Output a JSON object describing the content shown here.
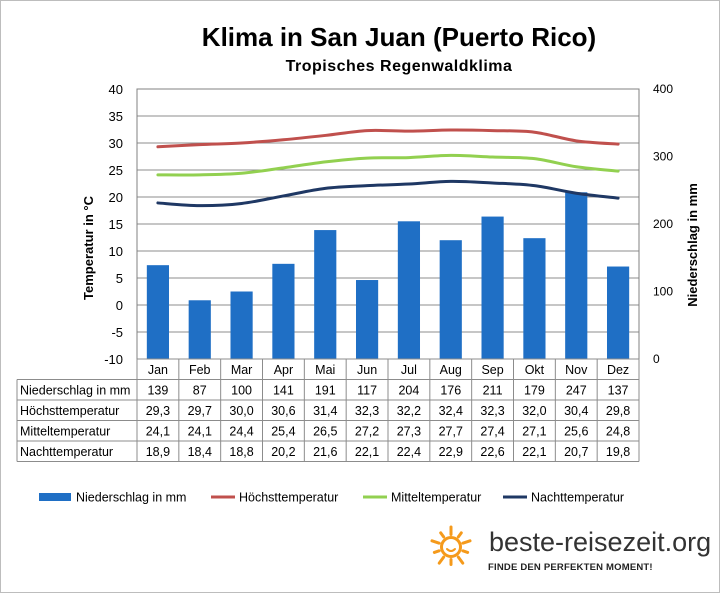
{
  "chart_data": {
    "type": "bar",
    "title": "Klima in San Juan (Puerto Rico)",
    "subtitle": "Tropisches Regenwaldklima",
    "ylabel_left": "Temperatur in °C",
    "ylabel_right": "Niederschlag in mm",
    "ylim_left": [
      -10,
      40
    ],
    "ylim_right": [
      0,
      400
    ],
    "yticks_left": [
      "40",
      "35",
      "30",
      "25",
      "20",
      "15",
      "10",
      "5",
      "0",
      "-5",
      "-10"
    ],
    "yticks_right": [
      "400",
      "300",
      "200",
      "100",
      "0"
    ],
    "grid": true,
    "legend_position": "bottom",
    "categories": [
      "Jan",
      "Feb",
      "Mar",
      "Apr",
      "Mai",
      "Jun",
      "Jul",
      "Aug",
      "Sep",
      "Okt",
      "Nov",
      "Dez"
    ],
    "series": [
      {
        "name": "Niederschlag in mm",
        "kind": "bar",
        "axis": "right",
        "color": "#1f6fc5",
        "values": [
          139,
          87,
          100,
          141,
          191,
          117,
          204,
          176,
          211,
          179,
          247,
          137
        ],
        "labels": [
          "139",
          "87",
          "100",
          "141",
          "191",
          "117",
          "204",
          "176",
          "211",
          "179",
          "247",
          "137"
        ]
      },
      {
        "name": "Höchsttemperatur",
        "kind": "line",
        "axis": "left",
        "color": "#c0504d",
        "values": [
          29.3,
          29.7,
          30.0,
          30.6,
          31.4,
          32.3,
          32.2,
          32.4,
          32.3,
          32.0,
          30.4,
          29.8
        ],
        "labels": [
          "29,3",
          "29,7",
          "30,0",
          "30,6",
          "31,4",
          "32,3",
          "32,2",
          "32,4",
          "32,3",
          "32,0",
          "30,4",
          "29,8"
        ]
      },
      {
        "name": "Mitteltemperatur",
        "kind": "line",
        "axis": "left",
        "color": "#92d050",
        "values": [
          24.1,
          24.1,
          24.4,
          25.4,
          26.5,
          27.2,
          27.3,
          27.7,
          27.4,
          27.1,
          25.6,
          24.8
        ],
        "labels": [
          "24,1",
          "24,1",
          "24,4",
          "25,4",
          "26,5",
          "27,2",
          "27,3",
          "27,7",
          "27,4",
          "27,1",
          "25,6",
          "24,8"
        ]
      },
      {
        "name": "Nachttemperatur",
        "kind": "line",
        "axis": "left",
        "color": "#1f3864",
        "values": [
          18.9,
          18.4,
          18.8,
          20.2,
          21.6,
          22.1,
          22.4,
          22.9,
          22.6,
          22.1,
          20.7,
          19.8
        ],
        "labels": [
          "18,9",
          "18,4",
          "18,8",
          "20,2",
          "21,6",
          "22,1",
          "22,4",
          "22,9",
          "22,6",
          "22,1",
          "20,7",
          "19,8"
        ]
      }
    ]
  },
  "logo": {
    "site": "beste-reisezeit.org",
    "slogan": "FINDE DEN PERFEKTEN MOMENT!",
    "sun_color": "#f59a1b"
  }
}
